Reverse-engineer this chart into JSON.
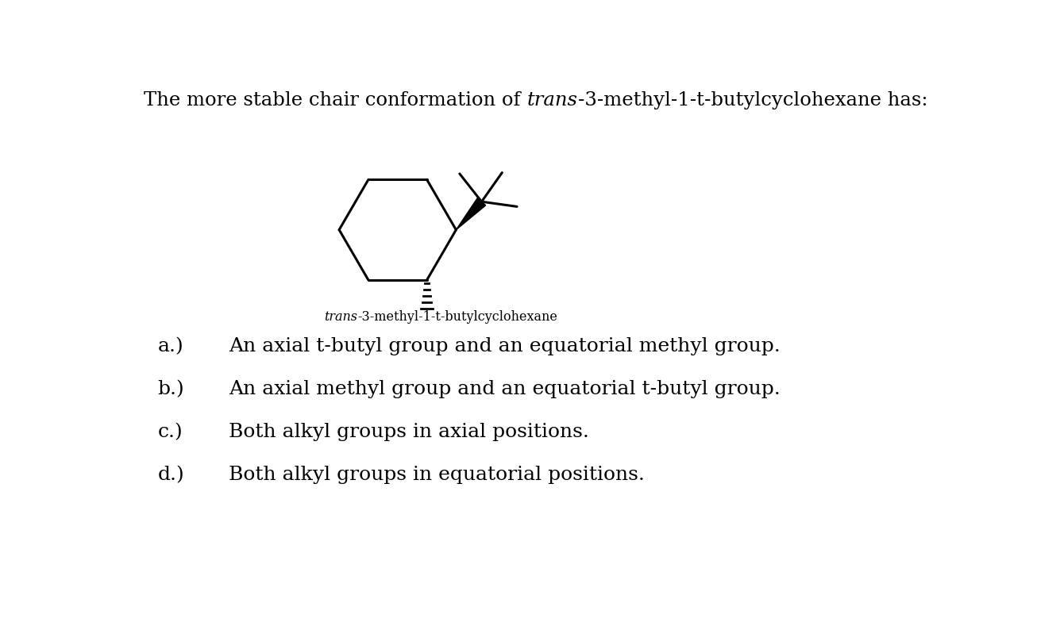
{
  "title_text1": "The more stable chair conformation of ",
  "title_italic": "trans",
  "title_text2": "-3-methyl-1-t-butylcyclohexane has:",
  "caption_italic": "trans",
  "caption_rest": "-3-methyl-1-t-butylcyclohexane",
  "options": [
    [
      "a.)",
      "An axial t-butyl group and an equatorial methyl group."
    ],
    [
      "b.)",
      "An axial methyl group and an equatorial t-butyl group."
    ],
    [
      "c.)",
      "Both alkyl groups in axial positions."
    ],
    [
      "d.)",
      "Both alkyl groups in equatorial positions."
    ]
  ],
  "bg_color": "#ffffff",
  "text_color": "#000000",
  "title_fontsize": 17.5,
  "option_fontsize": 18,
  "caption_fontsize": 11.5
}
